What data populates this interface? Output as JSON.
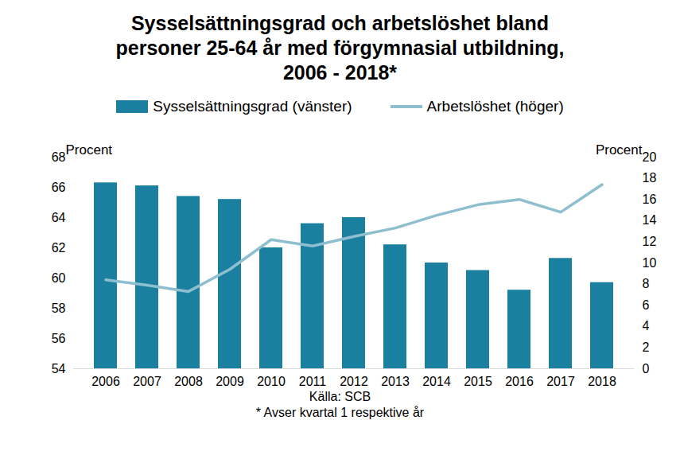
{
  "chart_data": {
    "type": "bar",
    "title": "Sysselsättningsgrad och arbetslöshet bland personer 25-64 år med förgymnasial utbildning, 2006 - 2018*",
    "categories": [
      "2006",
      "2007",
      "2008",
      "2009",
      "2010",
      "2011",
      "2012",
      "2013",
      "2014",
      "2015",
      "2016",
      "2017",
      "2018"
    ],
    "series": [
      {
        "name": "Sysselsättningsgrad (vänster)",
        "type": "bar",
        "color": "#1b7fa0",
        "values": [
          66.3,
          66.1,
          65.4,
          65.2,
          62.0,
          63.6,
          64.0,
          62.2,
          61.0,
          60.5,
          59.2,
          61.3,
          59.7
        ]
      },
      {
        "name": "Arbetslöshet (höger)",
        "type": "line",
        "color": "#8ebfcf",
        "axis": "y2",
        "values": [
          8.4,
          7.9,
          7.3,
          9.4,
          12.2,
          11.6,
          12.5,
          13.3,
          14.5,
          15.5,
          16.0,
          14.8,
          17.4
        ]
      }
    ],
    "ylim": [
      54,
      68
    ],
    "yticks": [
      54,
      56,
      58,
      60,
      62,
      64,
      66,
      68
    ],
    "y2lim": [
      0,
      20
    ],
    "y2ticks": [
      0,
      2,
      4,
      6,
      8,
      10,
      12,
      14,
      16,
      18,
      20
    ],
    "y_label": "Procent",
    "y2_label": "Procent",
    "source": "Källa: SCB",
    "note": "* Avser kvartal 1 respektive år",
    "legend": "top",
    "grid": false
  }
}
